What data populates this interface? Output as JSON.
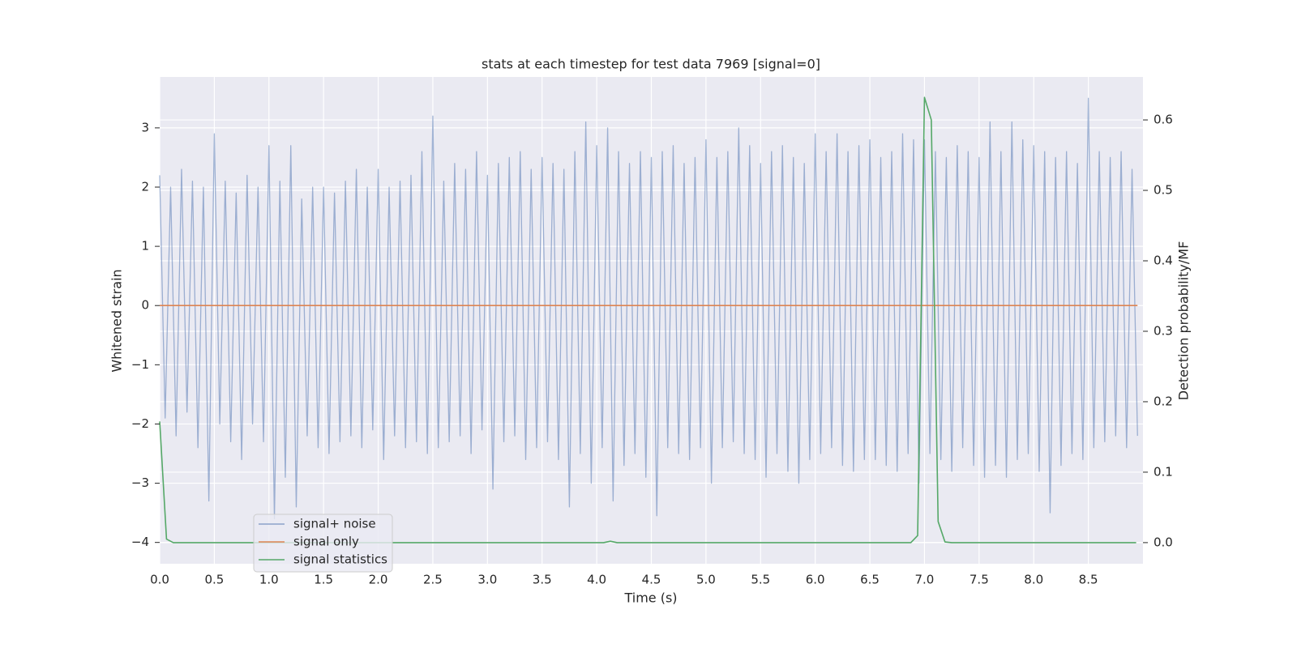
{
  "chart_data": {
    "type": "line",
    "title": "stats at each timestep for test data 7969 [signal=0]",
    "xlabel": "Time (s)",
    "ylabel": "Whitened strain",
    "y2label": "Detection probability/MF",
    "xlim": [
      0,
      9.0
    ],
    "ylim": [
      -4.36,
      3.86
    ],
    "y2lim": [
      -0.03,
      0.661
    ],
    "xticks": [
      {
        "value": 0,
        "label": "0.0"
      },
      0.5,
      {
        "value": 1,
        "label": "1.0"
      },
      1.5,
      {
        "value": 2,
        "label": "2.0"
      },
      2.5,
      {
        "value": 3,
        "label": "3.0"
      },
      3.5,
      {
        "value": 4,
        "label": "4.0"
      },
      4.5,
      {
        "value": 5,
        "label": "5.0"
      },
      5.5,
      {
        "value": 6,
        "label": "6.0"
      },
      6.5,
      {
        "value": 7,
        "label": "7.0"
      },
      7.5,
      {
        "value": 8,
        "label": "8.0"
      },
      8.5
    ],
    "yticks": [
      {
        "value": -4,
        "label": "−4"
      },
      {
        "value": -3,
        "label": "−3"
      },
      {
        "value": -2,
        "label": "−2"
      },
      {
        "value": -1,
        "label": "−1"
      },
      0,
      1,
      2,
      3
    ],
    "y2ticks": [
      {
        "value": 0,
        "label": "0.0"
      },
      0.1,
      0.2,
      0.3,
      0.4,
      0.5,
      0.6
    ],
    "grid": true,
    "series": [
      {
        "name": "signal+ noise",
        "color": "#4c72b0",
        "x": [
          0,
          0.05,
          0.1,
          0.15,
          0.2,
          0.25,
          0.3,
          0.35,
          0.4,
          0.45,
          0.5,
          0.55,
          0.6,
          0.65,
          0.7,
          0.75,
          0.8,
          0.85,
          0.9,
          0.95,
          1,
          1.05,
          1.1,
          1.15,
          1.2,
          1.25,
          1.3,
          1.35,
          1.4,
          1.45,
          1.5,
          1.55,
          1.6,
          1.65,
          1.7,
          1.75,
          1.8,
          1.85,
          1.9,
          1.95,
          2,
          2.05,
          2.1,
          2.15,
          2.2,
          2.25,
          2.3,
          2.35,
          2.4,
          2.45,
          2.5,
          2.55,
          2.6,
          2.65,
          2.7,
          2.75,
          2.8,
          2.85,
          2.9,
          2.95,
          3,
          3.05,
          3.1,
          3.15,
          3.2,
          3.25,
          3.3,
          3.35,
          3.4,
          3.45,
          3.5,
          3.55,
          3.6,
          3.65,
          3.7,
          3.75,
          3.8,
          3.85,
          3.9,
          3.95,
          4,
          4.05,
          4.1,
          4.15,
          4.2,
          4.25,
          4.3,
          4.35,
          4.4,
          4.45,
          4.5,
          4.55,
          4.6,
          4.65,
          4.7,
          4.75,
          4.8,
          4.85,
          4.9,
          4.95,
          5,
          5.05,
          5.1,
          5.15,
          5.2,
          5.25,
          5.3,
          5.35,
          5.4,
          5.45,
          5.5,
          5.55,
          5.6,
          5.65,
          5.7,
          5.75,
          5.8,
          5.85,
          5.9,
          5.95,
          6,
          6.05,
          6.1,
          6.15,
          6.2,
          6.25,
          6.3,
          6.35,
          6.4,
          6.45,
          6.5,
          6.55,
          6.6,
          6.65,
          6.7,
          6.75,
          6.8,
          6.85,
          6.9,
          6.95,
          7,
          7.05,
          7.1,
          7.15,
          7.2,
          7.25,
          7.3,
          7.35,
          7.4,
          7.45,
          7.5,
          7.55,
          7.6,
          7.65,
          7.7,
          7.75,
          7.8,
          7.85,
          7.9,
          7.95,
          8,
          8.05,
          8.1,
          8.15,
          8.2,
          8.25,
          8.3,
          8.35,
          8.4,
          8.45,
          8.5,
          8.55,
          8.6,
          8.65,
          8.7,
          8.75,
          8.8,
          8.85,
          8.9,
          8.95
        ],
        "values": [
          2.2,
          -1.9,
          2.0,
          -2.2,
          2.3,
          -1.8,
          2.1,
          -2.4,
          2.0,
          -3.3,
          2.9,
          -2.0,
          2.1,
          -2.3,
          1.9,
          -2.6,
          2.2,
          -2.0,
          2.0,
          -2.3,
          2.7,
          -3.6,
          2.1,
          -2.9,
          2.7,
          -3.4,
          1.8,
          -2.2,
          2.0,
          -2.4,
          2.0,
          -2.5,
          1.9,
          -2.3,
          2.1,
          -2.2,
          2.3,
          -2.4,
          2.0,
          -2.1,
          2.3,
          -2.6,
          2.0,
          -2.2,
          2.1,
          -2.4,
          2.2,
          -2.3,
          2.6,
          -2.5,
          3.2,
          -2.4,
          2.1,
          -2.3,
          2.4,
          -2.2,
          2.3,
          -2.5,
          2.6,
          -2.1,
          2.2,
          -3.1,
          2.4,
          -2.3,
          2.5,
          -2.2,
          2.6,
          -2.6,
          2.3,
          -2.4,
          2.5,
          -2.3,
          2.4,
          -2.6,
          2.3,
          -3.4,
          2.6,
          -2.5,
          3.1,
          -3.0,
          2.7,
          -2.4,
          3.0,
          -3.3,
          2.6,
          -2.7,
          2.4,
          -2.5,
          2.6,
          -2.9,
          2.5,
          -3.55,
          2.6,
          -2.4,
          2.7,
          -2.5,
          2.4,
          -2.6,
          2.5,
          -2.4,
          2.8,
          -3.0,
          2.5,
          -2.4,
          2.6,
          -2.3,
          3.0,
          -2.5,
          2.7,
          -2.6,
          2.4,
          -2.9,
          2.6,
          -2.5,
          2.7,
          -2.8,
          2.5,
          -3.0,
          2.4,
          -2.6,
          2.9,
          -2.5,
          2.6,
          -2.4,
          2.9,
          -2.7,
          2.6,
          -2.8,
          2.7,
          -2.6,
          2.8,
          -2.6,
          2.5,
          -2.7,
          2.6,
          -2.8,
          2.9,
          -2.5,
          2.8,
          -3.0,
          2.8,
          -2.5,
          2.6,
          -2.6,
          2.5,
          -2.8,
          2.7,
          -2.4,
          2.6,
          -2.7,
          2.5,
          -2.9,
          3.1,
          -2.7,
          2.6,
          -2.9,
          3.1,
          -2.6,
          2.8,
          -2.5,
          2.7,
          -2.8,
          2.6,
          -3.5,
          2.5,
          -2.7,
          2.6,
          -2.5,
          2.4,
          -2.6,
          3.5,
          -2.4,
          2.6,
          -2.3,
          2.5,
          -2.2,
          2.6,
          -2.4,
          2.3,
          -2.2
        ]
      },
      {
        "name": "signal only",
        "color": "#dd8452",
        "x": [
          0,
          8.95
        ],
        "values": [
          0,
          0
        ]
      },
      {
        "name": "signal statistics",
        "color": "#55a868",
        "axis": "y2",
        "x": [
          0,
          0.0625,
          0.125,
          4.0625,
          4.125,
          4.1875,
          6.875,
          6.9375,
          7.0,
          7.0625,
          7.125,
          7.1875,
          7.25,
          8.9375
        ],
        "values": [
          0.172,
          0.005,
          0,
          0,
          0.002,
          0,
          0,
          0.01,
          0.632,
          0.6,
          0.03,
          0.001,
          0,
          0
        ]
      }
    ]
  }
}
